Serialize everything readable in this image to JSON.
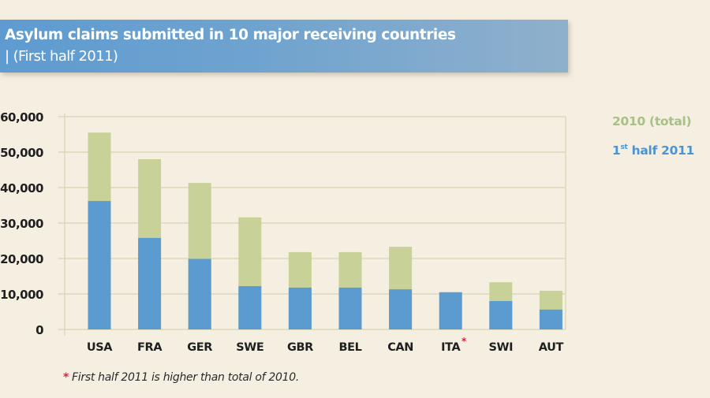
{
  "header": {
    "title": "Asylum claims submitted in 10 major receiving countries",
    "subtitle": "| (First half 2011)"
  },
  "legend": {
    "total_label": "2010 (total)",
    "half_prefix": "1",
    "half_sup": "st",
    "half_suffix": " half 2011"
  },
  "footnote": {
    "marker": "*",
    "text": "First half 2011 is higher than total of 2010."
  },
  "colors": {
    "total_2010": "#c8d198",
    "first_half_2011": "#5b9bd0",
    "grid": "#d6d4b4",
    "asterisk": "#e01e3c"
  },
  "chart_data": {
    "type": "bar",
    "stacked": "overlay",
    "title": "Asylum claims submitted in 10 major receiving countries | (First half 2011)",
    "xlabel": "",
    "ylabel": "",
    "categories": [
      "USA",
      "FRA",
      "GER",
      "SWE",
      "GBR",
      "BEL",
      "CAN",
      "ITA",
      "SWI",
      "AUT"
    ],
    "category_markers": [
      "",
      "",
      "",
      "",
      "",
      "",
      "",
      "*",
      "",
      ""
    ],
    "series": [
      {
        "name": "2010 (total)",
        "values": [
          55500,
          48000,
          41300,
          31600,
          21800,
          21800,
          23300,
          10100,
          13300,
          10900
        ]
      },
      {
        "name": "1st half 2011",
        "values": [
          36200,
          25800,
          19900,
          12200,
          11800,
          11800,
          11300,
          10500,
          8000,
          5600
        ]
      }
    ],
    "ylim": [
      0,
      60000
    ],
    "yticks": [
      0,
      10000,
      20000,
      30000,
      40000,
      50000,
      60000
    ],
    "ytick_labels": [
      "0",
      "10,000",
      "20,000",
      "30,000",
      "40,000",
      "50,000",
      "60,000"
    ],
    "grid": true,
    "legend_position": "right"
  }
}
